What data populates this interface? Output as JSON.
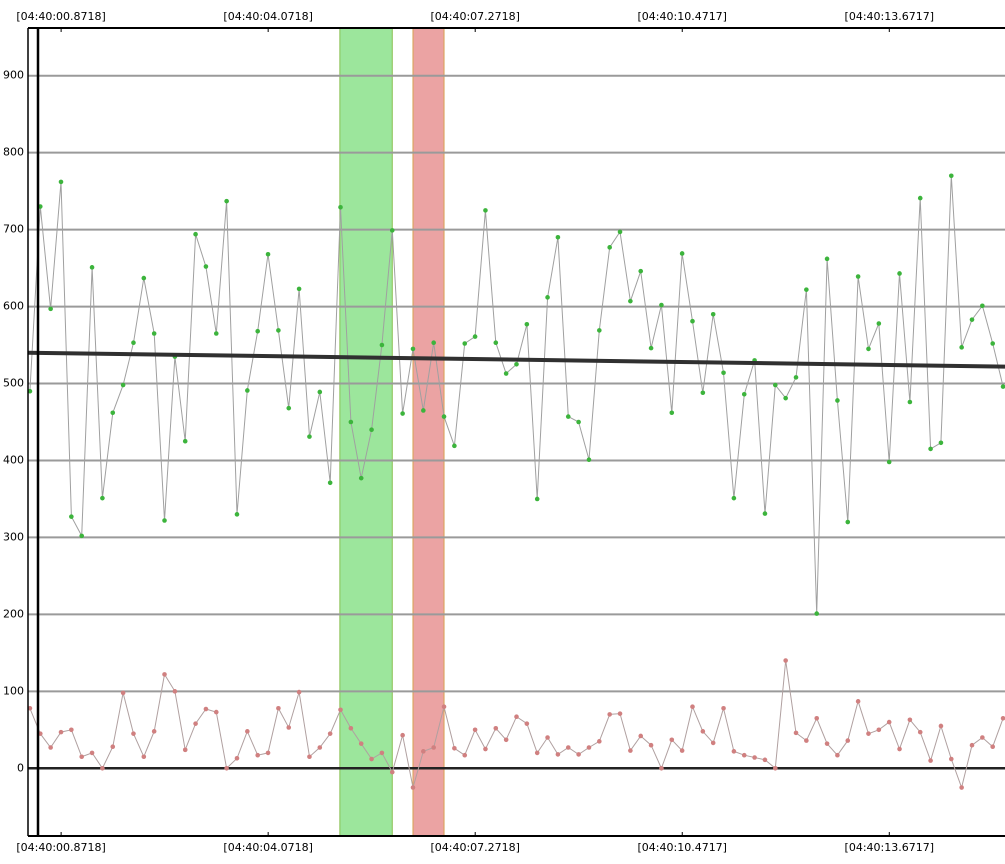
{
  "chart_data": {
    "type": "line",
    "x": [
      0.39,
      0.55,
      0.71,
      0.87,
      1.03,
      1.19,
      1.35,
      1.51,
      1.67,
      1.83,
      1.99,
      2.15,
      2.31,
      2.47,
      2.63,
      2.79,
      2.95,
      3.11,
      3.27,
      3.43,
      3.59,
      3.75,
      3.91,
      4.07,
      4.23,
      4.39,
      4.55,
      4.71,
      4.87,
      5.03,
      5.19,
      5.35,
      5.51,
      5.67,
      5.83,
      5.99,
      6.15,
      6.31,
      6.47,
      6.63,
      6.79,
      6.95,
      7.11,
      7.27,
      7.43,
      7.59,
      7.75,
      7.91,
      8.07,
      8.23,
      8.39,
      8.55,
      8.71,
      8.87,
      9.03,
      9.19,
      9.35,
      9.51,
      9.67,
      9.83,
      9.99,
      10.15,
      10.31,
      10.47,
      10.63,
      10.79,
      10.95,
      11.11,
      11.27,
      11.43,
      11.59,
      11.75,
      11.91,
      12.07,
      12.23,
      12.39,
      12.55,
      12.71,
      12.87,
      13.03,
      13.19,
      13.35,
      13.51,
      13.67,
      13.83,
      13.99,
      14.15,
      14.31,
      14.47,
      14.63,
      14.79,
      14.95,
      15.11,
      15.27,
      15.43
    ],
    "series": [
      {
        "color": "#3cb43c",
        "line_color": "#a0a0a0",
        "values": [
          490,
          730,
          597,
          762,
          327,
          302,
          651,
          351,
          462,
          498,
          553,
          637,
          565,
          322,
          535,
          425,
          694,
          652,
          565,
          737,
          330,
          491,
          568,
          668,
          569,
          468,
          623,
          431,
          489,
          371,
          729,
          450,
          377,
          440,
          550,
          699,
          461,
          545,
          465,
          553,
          457,
          419,
          552,
          561,
          725,
          553,
          513,
          525,
          577,
          350,
          612,
          690,
          457,
          450,
          401,
          569,
          677,
          697,
          607,
          646,
          546,
          602,
          462,
          669,
          581,
          488,
          590,
          514,
          351,
          486,
          530,
          331,
          498,
          481,
          508,
          622,
          201,
          662,
          478,
          320,
          639,
          545,
          578,
          398,
          643,
          476,
          741,
          415,
          423,
          770,
          547,
          583,
          601,
          552,
          496
        ]
      },
      {
        "color": "#d08080",
        "line_color": "#b0a0a0",
        "values": [
          78,
          45,
          27,
          47,
          50,
          15,
          20,
          0,
          28,
          98,
          45,
          15,
          48,
          122,
          100,
          24,
          58,
          77,
          73,
          0,
          13,
          48,
          17,
          20,
          78,
          53,
          99,
          15,
          27,
          45,
          76,
          52,
          32,
          12,
          20,
          -5,
          43,
          -25,
          22,
          27,
          80,
          26,
          17,
          50,
          25,
          52,
          37,
          67,
          58,
          20,
          40,
          18,
          27,
          18,
          27,
          35,
          70,
          71,
          23,
          42,
          30,
          0,
          37,
          23,
          80,
          48,
          33,
          78,
          22,
          17,
          14,
          11,
          0,
          140,
          46,
          36,
          65,
          32,
          17,
          36,
          87,
          45,
          50,
          60,
          25,
          63,
          47,
          10,
          55,
          12,
          -25,
          30,
          40,
          28,
          65
        ]
      },
      {
        "color": "#303030",
        "line_color": "#303030",
        "line_width": 4,
        "x": [
          0.36,
          15.46
        ],
        "values": [
          540,
          522
        ]
      }
    ],
    "bands": [
      {
        "x0": 5.18,
        "x1": 5.99,
        "color": "#9ce69c",
        "border": "#88c050"
      },
      {
        "x0": 6.31,
        "x1": 6.79,
        "color": "#eba3a3",
        "border": "#d8a050"
      }
    ],
    "xlim": [
      0.36,
      15.46
    ],
    "ylim": [
      -88,
      962
    ],
    "xticks": [
      {
        "value": 0.8718,
        "label": "[04:40:00.8718]"
      },
      {
        "value": 4.0718,
        "label": "[04:40:04.0718]"
      },
      {
        "value": 7.2718,
        "label": "[04:40:07.2718]"
      },
      {
        "value": 10.4717,
        "label": "[04:40:10.4717]"
      },
      {
        "value": 13.6717,
        "label": "[04:40:13.6717]"
      }
    ],
    "yticks": [
      0,
      100,
      200,
      300,
      400,
      500,
      600,
      700,
      800,
      900
    ],
    "grid": true
  }
}
